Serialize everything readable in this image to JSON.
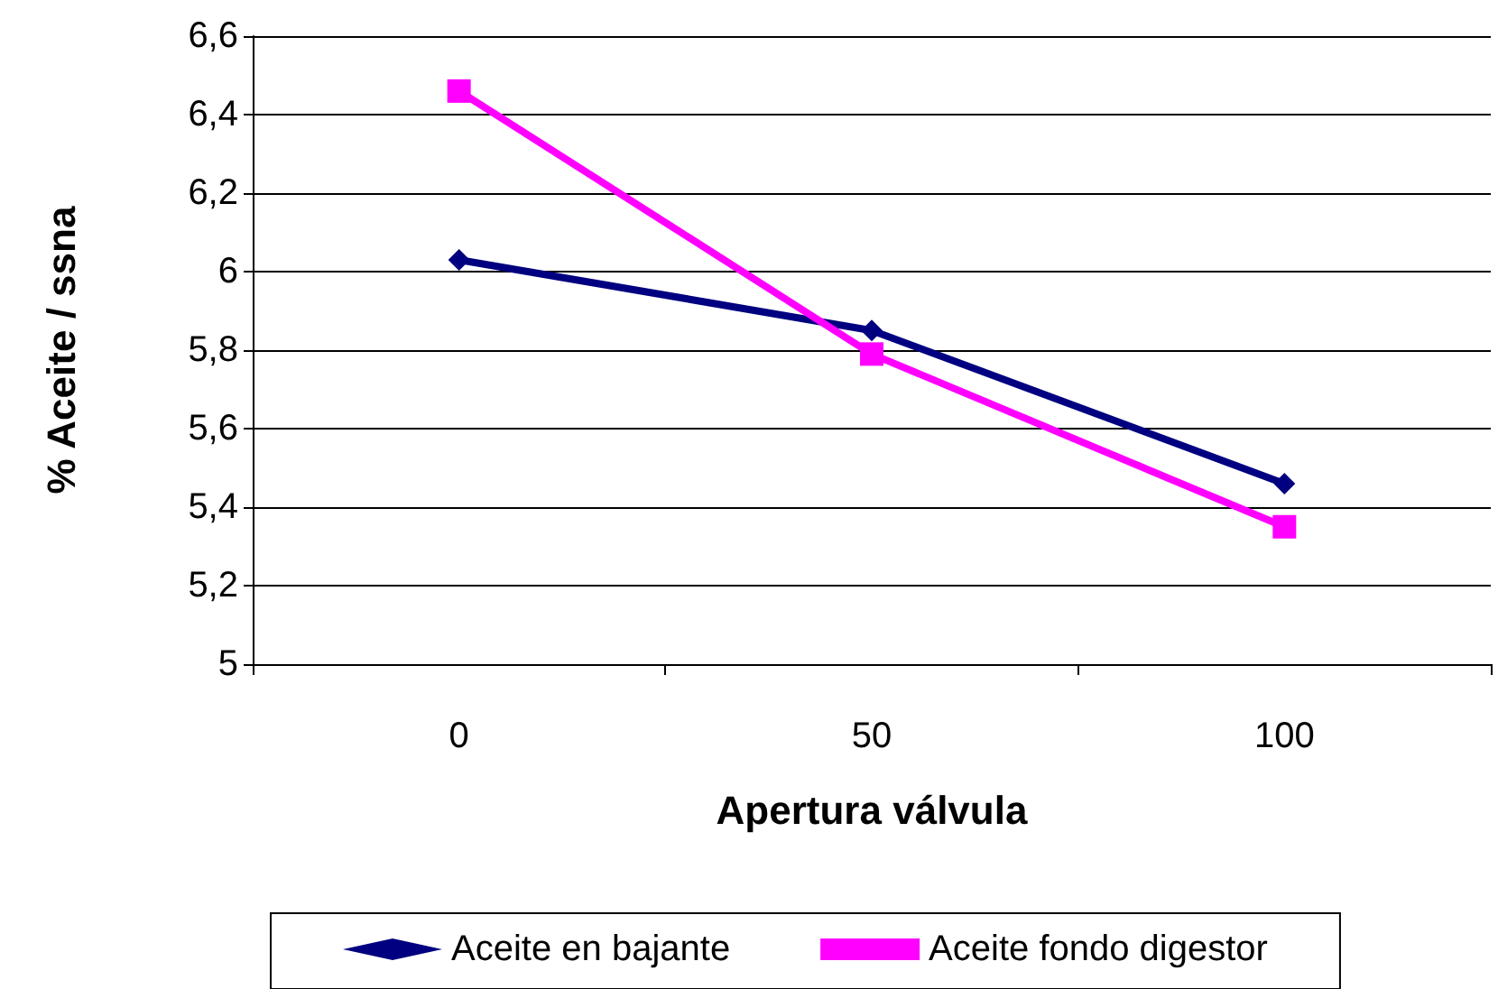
{
  "chart_data": {
    "type": "line",
    "xlabel": "Apertura válvula",
    "ylabel": "% Aceite / ssna",
    "categories": [
      "0",
      "50",
      "100"
    ],
    "series": [
      {
        "name": "Aceite en bajante",
        "color": "#000080",
        "marker": "diamond",
        "values": [
          6.03,
          5.85,
          5.46
        ]
      },
      {
        "name": "Aceite fondo digestor",
        "color": "#ff00ff",
        "marker": "square",
        "values": [
          6.46,
          5.79,
          5.35
        ]
      }
    ],
    "ylim": [
      5,
      6.6
    ],
    "yticks": [
      5,
      {
        "value": 5.2,
        "label": "5,2"
      },
      {
        "value": 5.4,
        "label": "5,4"
      },
      {
        "value": 5.6,
        "label": "5,6"
      },
      {
        "value": 5.8,
        "label": "5,8"
      },
      6,
      {
        "value": 6.2,
        "label": "6,2"
      },
      {
        "value": 6.4,
        "label": "6,4"
      },
      {
        "value": 6.6,
        "label": "6,6"
      }
    ],
    "grid": "y",
    "legend": "bottom",
    "line_style": "solid"
  }
}
